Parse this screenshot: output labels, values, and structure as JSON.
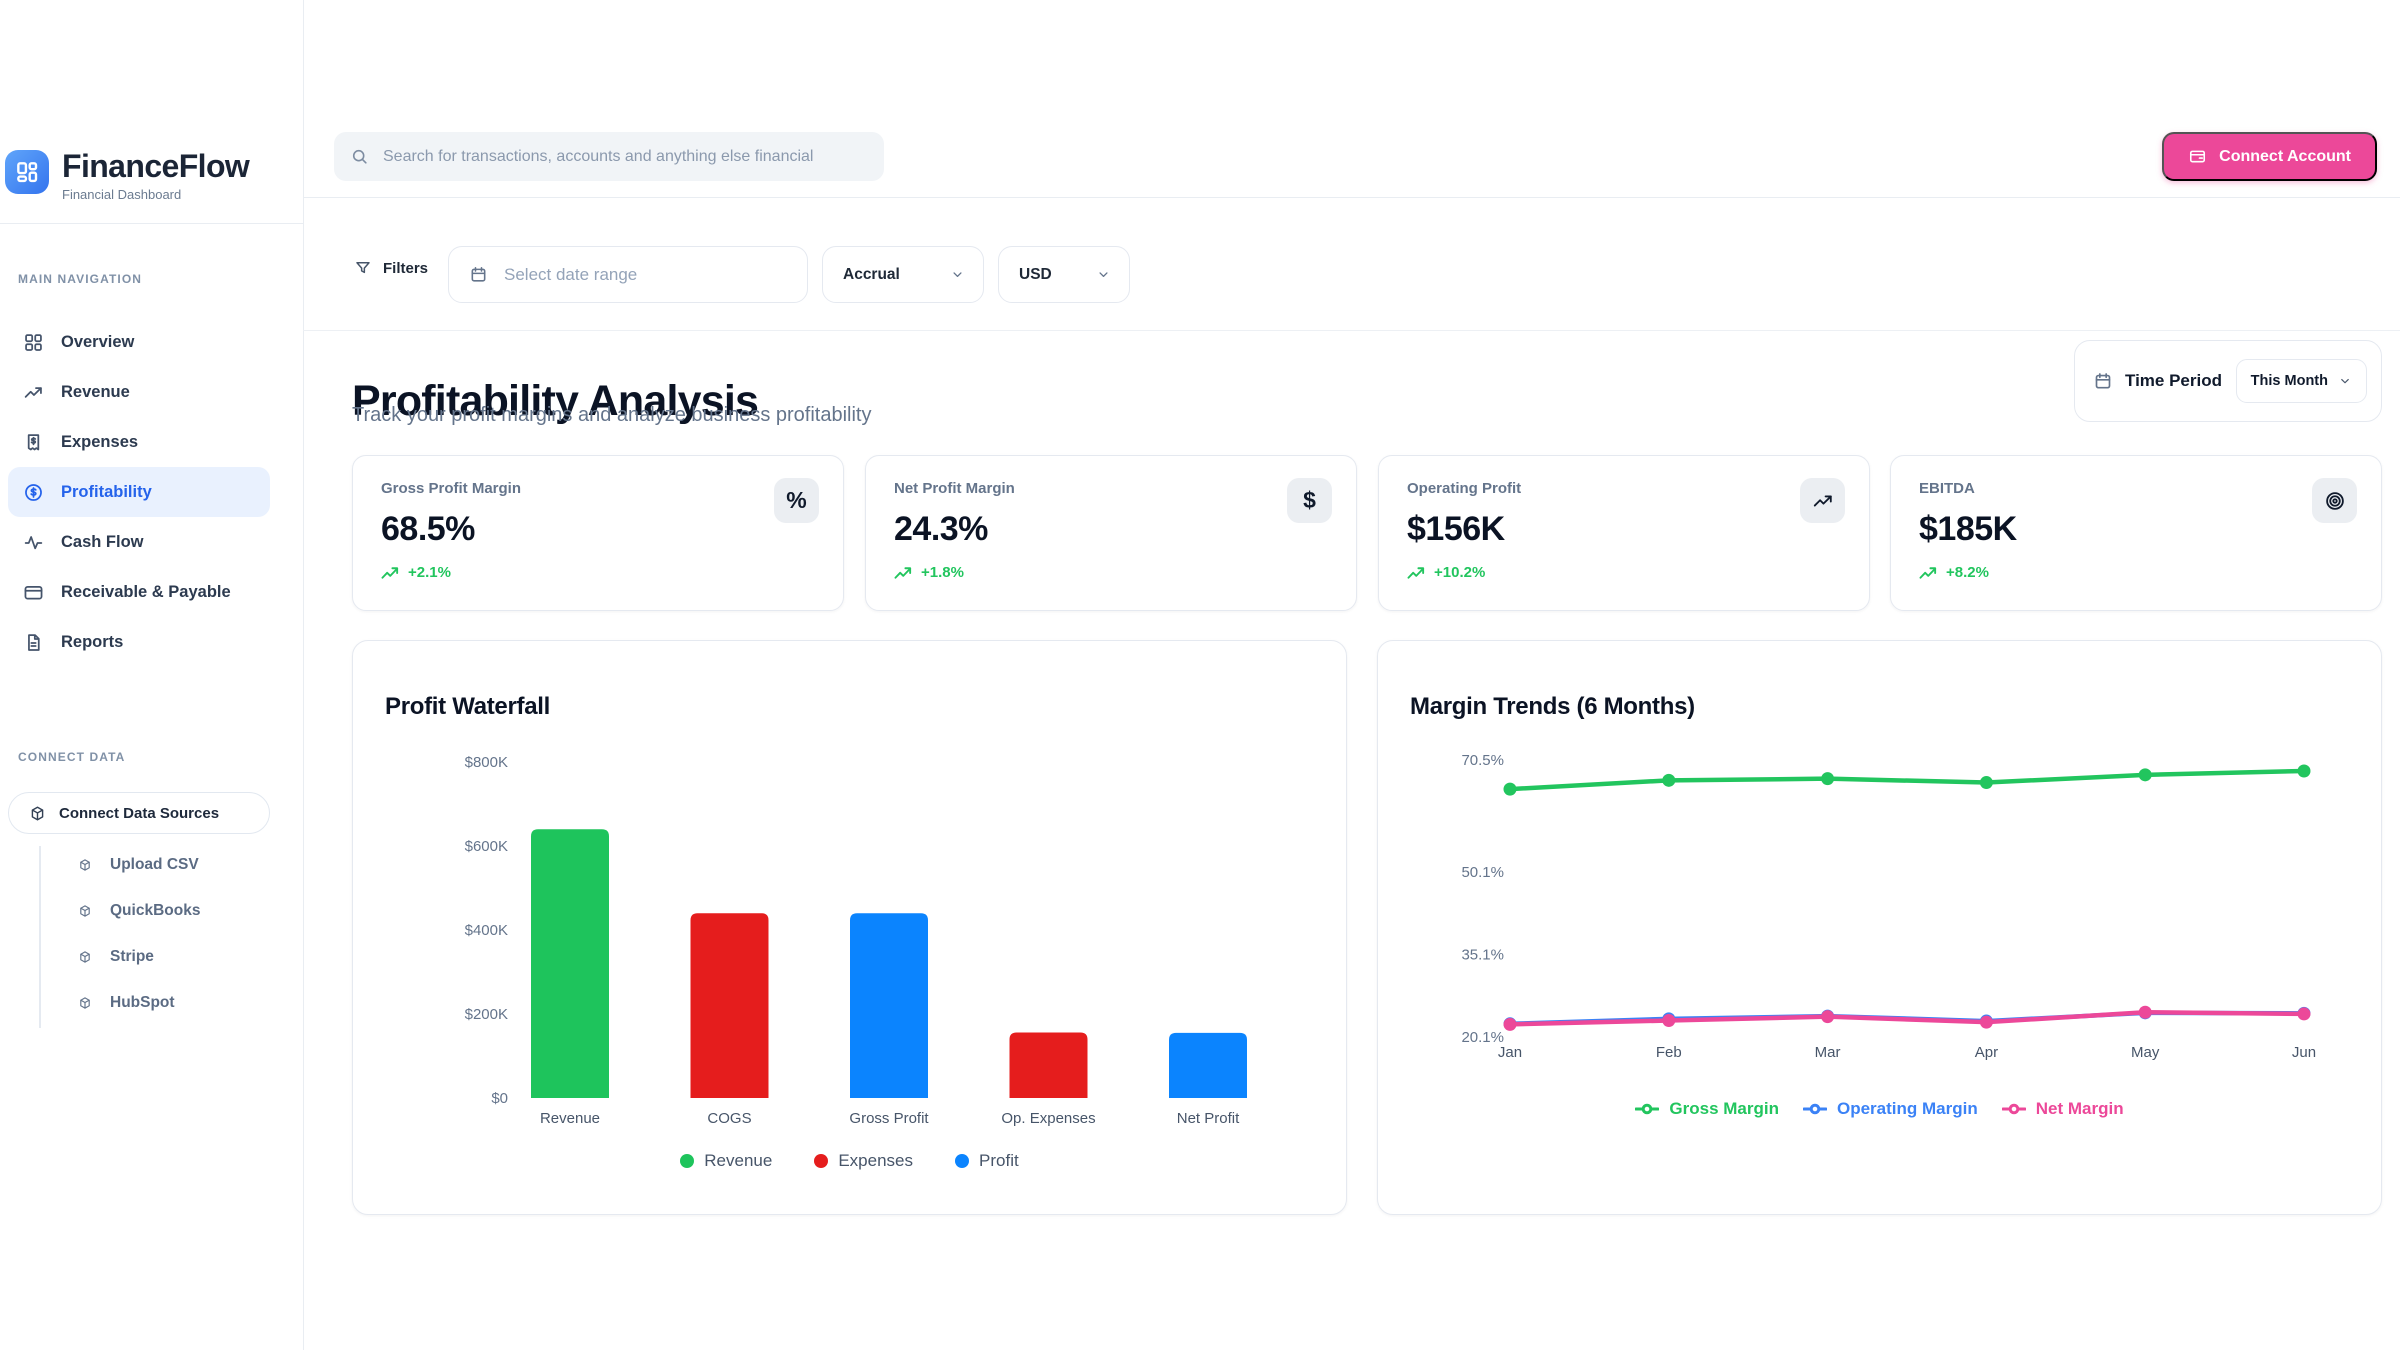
{
  "app": {
    "name": "FinanceFlow",
    "tagline": "Financial Dashboard"
  },
  "topbar": {
    "search_placeholder": "Search for transactions, accounts and anything else financial",
    "connect_account_label": "Connect Account",
    "icons": {
      "search": "magnifier-icon",
      "connect": "wallet-icon"
    }
  },
  "sidebar": {
    "sections": [
      {
        "label": "MAIN NAVIGATION"
      },
      {
        "label": "CONNECT DATA"
      }
    ],
    "nav": [
      {
        "label": "Overview",
        "icon": "grid-icon",
        "active": false
      },
      {
        "label": "Revenue",
        "icon": "trending-up-icon",
        "active": false
      },
      {
        "label": "Expenses",
        "icon": "receipt-icon",
        "active": false
      },
      {
        "label": "Profitability",
        "icon": "dollar-circle-icon",
        "active": true
      },
      {
        "label": "Cash Flow",
        "icon": "activity-icon",
        "active": false
      },
      {
        "label": "Receivable & Payable",
        "icon": "credit-card-icon",
        "active": false
      },
      {
        "label": "Reports",
        "icon": "file-icon",
        "active": false
      }
    ],
    "connect": {
      "button_label": "Connect Data Sources",
      "icon": "cube-icon",
      "sources": [
        {
          "label": "Upload CSV",
          "icon": "cube-icon"
        },
        {
          "label": "QuickBooks",
          "icon": "cube-icon"
        },
        {
          "label": "Stripe",
          "icon": "cube-icon"
        },
        {
          "label": "HubSpot",
          "icon": "cube-icon"
        }
      ]
    }
  },
  "filters": {
    "filters_label": "Filters",
    "date_range_placeholder": "Select date range",
    "basis_selected": "Accrual",
    "currency_selected": "USD"
  },
  "page": {
    "title": "Profitability Analysis",
    "subtitle": "Track your profit margins and analyze business profitability",
    "time_period_label": "Time Period",
    "time_period_selected": "This Month"
  },
  "kpis": [
    {
      "label": "Gross Profit Margin",
      "value": "68.5%",
      "change": "+2.1%",
      "icon": "percent-icon"
    },
    {
      "label": "Net Profit Margin",
      "value": "24.3%",
      "change": "+1.8%",
      "icon": "dollar-icon"
    },
    {
      "label": "Operating Profit",
      "value": "$156K",
      "change": "+10.2%",
      "icon": "trending-up-icon"
    },
    {
      "label": "EBITDA",
      "value": "$185K",
      "change": "+8.2%",
      "icon": "target-icon"
    }
  ],
  "colors": {
    "brand_blue": "#3b82f6",
    "active_blue": "#2563eb",
    "pink": "#ec4899",
    "chart_green": "#1ec45c",
    "chart_red": "#e51d1d",
    "chart_blue": "#0b84fe",
    "line_green": "#22c55e",
    "line_blue": "#3b82f6",
    "line_pink": "#ec4899",
    "delta_green": "#22c55e"
  },
  "chart_data": [
    {
      "type": "bar",
      "title": "Profit Waterfall",
      "categories": [
        "Revenue",
        "COGS",
        "Gross Profit",
        "Op. Expenses",
        "Net Profit"
      ],
      "values": [
        640,
        440,
        440,
        156,
        155
      ],
      "unit": "thousand USD",
      "bar_roles": [
        "revenue",
        "expense",
        "profit",
        "expense",
        "profit"
      ],
      "role_colors": {
        "revenue": "#1ec45c",
        "expense": "#e51d1d",
        "profit": "#0b84fe"
      },
      "ytick_labels": [
        "$800K",
        "$600K",
        "$400K",
        "$200K",
        "$0"
      ],
      "ylim": [
        0,
        800
      ],
      "grid": false,
      "legend_position": "bottom",
      "legend": [
        {
          "label": "Revenue",
          "color": "#1ec45c"
        },
        {
          "label": "Expenses",
          "color": "#e51d1d"
        },
        {
          "label": "Profit",
          "color": "#0b84fe"
        }
      ]
    },
    {
      "type": "line",
      "title": "Margin Trends (6 Months)",
      "x": [
        "Jan",
        "Feb",
        "Mar",
        "Apr",
        "May",
        "Jun"
      ],
      "series": [
        {
          "name": "Operating Margin",
          "color": "#3b82f6",
          "values": [
            22.5,
            23.4,
            23.9,
            23.0,
            24.5,
            24.4
          ]
        },
        {
          "name": "Net Margin",
          "color": "#ec4899",
          "values": [
            22.4,
            23.1,
            23.8,
            22.8,
            24.6,
            24.3
          ]
        },
        {
          "name": "Gross Margin",
          "color": "#22c55e",
          "values": [
            65.2,
            66.8,
            67.1,
            66.4,
            67.8,
            68.5
          ]
        }
      ],
      "yticks": [
        70.5,
        50.1,
        35.1,
        20.1
      ],
      "ytick_labels": [
        "70.5%",
        "50.1%",
        "35.1%",
        "20.1%"
      ],
      "ylim": [
        20.1,
        70.5
      ],
      "grid": false,
      "legend_position": "bottom",
      "legend": [
        {
          "label": "Gross Margin",
          "color": "#22c55e"
        },
        {
          "label": "Operating Margin",
          "color": "#3b82f6"
        },
        {
          "label": "Net Margin",
          "color": "#ec4899"
        }
      ]
    }
  ]
}
